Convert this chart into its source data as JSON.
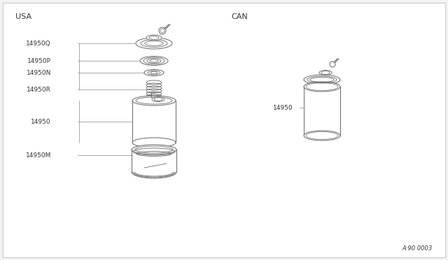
{
  "background_color": "#f2f2f2",
  "border_color": "#cccccc",
  "diagram_color": "#666666",
  "line_color": "#888888",
  "text_color": "#333333",
  "usa_label": "USA",
  "can_label": "CAN",
  "diagram_id": "A·90 0003",
  "fig_width": 6.4,
  "fig_height": 3.72,
  "dpi": 100
}
